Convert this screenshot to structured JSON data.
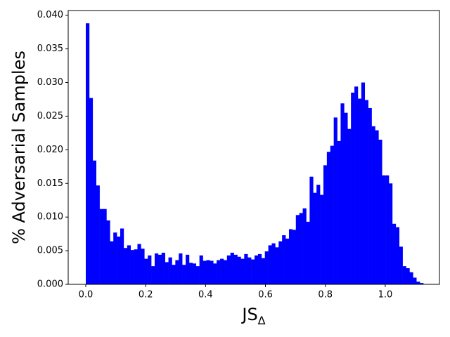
{
  "chart_data": {
    "type": "histogram",
    "ylabel": "% Adversarial Samples",
    "xlabel": "JS",
    "xlabel_subscript": "Δ",
    "color": "#0000ff",
    "bins": [
      0,
      0.0115,
      0.023,
      0.0345,
      0.046,
      0.0575,
      0.069,
      0.0805,
      0.092,
      0.1035,
      0.115,
      0.1265,
      0.138,
      0.1495,
      0.161,
      0.1725,
      0.184,
      0.1955,
      0.207,
      0.2185,
      0.23,
      0.2415,
      0.253,
      0.2645,
      0.276,
      0.2875,
      0.299,
      0.3105,
      0.322,
      0.3335,
      0.345,
      0.3565,
      0.368,
      0.3795,
      0.391,
      0.4025,
      0.414,
      0.4255,
      0.437,
      0.4485,
      0.46,
      0.4715,
      0.483,
      0.4945,
      0.506,
      0.5175,
      0.529,
      0.5405,
      0.552,
      0.5635,
      0.575,
      0.5865,
      0.598,
      0.6095,
      0.621,
      0.6325,
      0.644,
      0.6555,
      0.667,
      0.6785,
      0.69,
      0.7015,
      0.713,
      0.7245,
      0.736,
      0.7475,
      0.759,
      0.7705,
      0.782,
      0.7935,
      0.805,
      0.8165,
      0.828,
      0.8395,
      0.851,
      0.8625,
      0.874,
      0.8855,
      0.897,
      0.9085,
      0.92,
      0.9315,
      0.943,
      0.9545,
      0.966,
      0.9775,
      0.989,
      1.0005,
      1.012,
      1.0235,
      1.035,
      1.0465,
      1.058,
      1.0695,
      1.081,
      1.0925,
      1.104,
      1.1155,
      1.127
    ],
    "values": [
      0.0388,
      0.0277,
      0.0184,
      0.0147,
      0.0112,
      0.0112,
      0.0095,
      0.0064,
      0.0077,
      0.0071,
      0.0083,
      0.0054,
      0.0058,
      0.0051,
      0.0052,
      0.006,
      0.0053,
      0.0038,
      0.0043,
      0.0027,
      0.0046,
      0.0044,
      0.0047,
      0.0033,
      0.004,
      0.0029,
      0.0036,
      0.0046,
      0.0029,
      0.0044,
      0.0032,
      0.0031,
      0.0027,
      0.0043,
      0.0035,
      0.0036,
      0.0035,
      0.0031,
      0.0036,
      0.0038,
      0.0036,
      0.0043,
      0.0047,
      0.0044,
      0.0041,
      0.0038,
      0.0045,
      0.004,
      0.0037,
      0.0043,
      0.0045,
      0.0039,
      0.0049,
      0.0058,
      0.0061,
      0.0055,
      0.0064,
      0.0073,
      0.0068,
      0.0082,
      0.0081,
      0.0103,
      0.0106,
      0.0113,
      0.0093,
      0.016,
      0.0136,
      0.0148,
      0.0133,
      0.0177,
      0.0197,
      0.0206,
      0.0248,
      0.0213,
      0.0269,
      0.0255,
      0.0231,
      0.0285,
      0.0294,
      0.0276,
      0.03,
      0.0274,
      0.0262,
      0.0235,
      0.0229,
      0.0215,
      0.0162,
      0.0162,
      0.015,
      0.009,
      0.0085,
      0.0056,
      0.0027,
      0.0024,
      0.0018,
      0.001,
      0.0004,
      0.0002
    ],
    "xlim": [
      -0.0587,
      1.181
    ],
    "ylim": [
      0,
      0.0407
    ],
    "xticks": [
      {
        "value": 0,
        "label": "0.0"
      },
      {
        "value": 0.2,
        "label": "0.2"
      },
      {
        "value": 0.4,
        "label": "0.4"
      },
      {
        "value": 0.6,
        "label": "0.6"
      },
      {
        "value": 0.8,
        "label": "0.8"
      },
      {
        "value": 1,
        "label": "1.0"
      }
    ],
    "yticks": [
      {
        "value": 0,
        "label": "0.000"
      },
      {
        "value": 0.005,
        "label": "0.005"
      },
      {
        "value": 0.01,
        "label": "0.010"
      },
      {
        "value": 0.015,
        "label": "0.015"
      },
      {
        "value": 0.02,
        "label": "0.020"
      },
      {
        "value": 0.025,
        "label": "0.025"
      },
      {
        "value": 0.03,
        "label": "0.030"
      },
      {
        "value": 0.035,
        "label": "0.035"
      },
      {
        "value": 0.04,
        "label": "0.040"
      }
    ]
  }
}
